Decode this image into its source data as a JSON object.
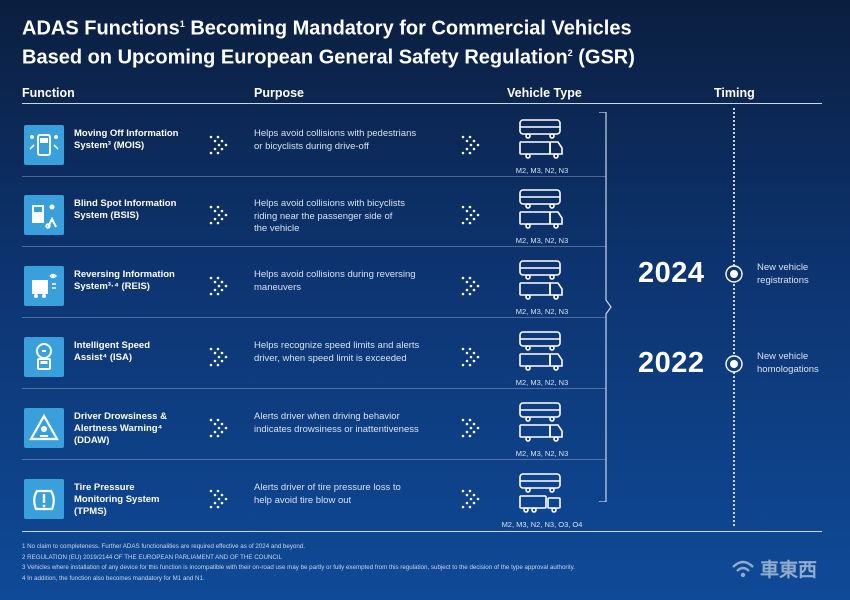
{
  "title": {
    "line1_a": "ADAS Functions",
    "line1_sup": "1",
    "line1_b": " Becoming Mandatory for Commercial Vehicles",
    "line2_a": "Based on Upcoming European General Safety Regulation",
    "line2_sup": "2",
    "line2_b": " (GSR)"
  },
  "headers": {
    "function": "Function",
    "purpose": "Purpose",
    "vehicle_type": "Vehicle Type",
    "timing": "Timing"
  },
  "rows": [
    {
      "name_line1": "Moving Off Information",
      "name_line2": "System³ (MOIS)",
      "name_line3": "",
      "purpose_line1": "Helps avoid collisions with pedestrians",
      "purpose_line2": "or bicyclists during drive-off",
      "purpose_line3": "",
      "vehicles": "M2, M3, N2, N3",
      "icon": "moving-off-icon"
    },
    {
      "name_line1": "Blind Spot Information",
      "name_line2": "System (BSIS)",
      "name_line3": "",
      "purpose_line1": "Helps avoid collisions with bicyclists",
      "purpose_line2": "riding near the passenger side of",
      "purpose_line3": "the vehicle",
      "vehicles": "M2, M3, N2, N3",
      "icon": "blind-spot-icon"
    },
    {
      "name_line1": "Reversing Information",
      "name_line2": "System³·⁴ (REIS)",
      "name_line3": "",
      "purpose_line1": "Helps avoid collisions during reversing",
      "purpose_line2": "maneuvers",
      "purpose_line3": "",
      "vehicles": "M2, M3, N2, N3",
      "icon": "reversing-icon"
    },
    {
      "name_line1": "Intelligent Speed",
      "name_line2": "Assist⁴ (ISA)",
      "name_line3": "",
      "purpose_line1": "Helps recognize speed limits and alerts",
      "purpose_line2": "driver, when speed limit is exceeded",
      "purpose_line3": "",
      "vehicles": "M2, M3, N2, N3",
      "icon": "speed-assist-icon"
    },
    {
      "name_line1": "Driver Drowsiness &",
      "name_line2": "Alertness Warning⁴",
      "name_line3": "(DDAW)",
      "purpose_line1": "Alerts driver when driving behavior",
      "purpose_line2": "indicates drowsiness or inattentiveness",
      "purpose_line3": "",
      "vehicles": "M2, M3, N2, N3",
      "icon": "drowsiness-warning-icon"
    },
    {
      "name_line1": "Tire Pressure",
      "name_line2": "Monitoring System",
      "name_line3": "(TPMS)",
      "purpose_line1": "Alerts driver of tire pressure loss to",
      "purpose_line2": "help avoid tire blow out",
      "purpose_line3": "",
      "vehicles": "M2, M3, N2, N3, O3, O4",
      "icon": "tire-pressure-icon"
    }
  ],
  "timeline": [
    {
      "year": "2024",
      "label_line1": "New vehicle",
      "label_line2": "registrations"
    },
    {
      "year": "2022",
      "label_line1": "New vehicle",
      "label_line2": "homologations"
    }
  ],
  "footnotes": [
    "1 No claim to completeness. Further ADAS functionalities are required effective as of 2024 and beyond.",
    "2 REGULATION (EU) 2019/2144 OF THE EUROPEAN PARLIAMENT AND OF THE COUNCIL",
    "3 Vehicles where installation of any device for this function is incompatible with their on-road use may be partly or fully exempted from this regulation, subject to the decision of the type approval authority.",
    "4 In addition, the function also becomes mandatory for M1 and N1."
  ],
  "watermark": "車東西",
  "colors": {
    "icon_bg": "#3aa0dc",
    "bg_top": "#0b1e3f",
    "bg_bottom": "#0f4a98"
  }
}
